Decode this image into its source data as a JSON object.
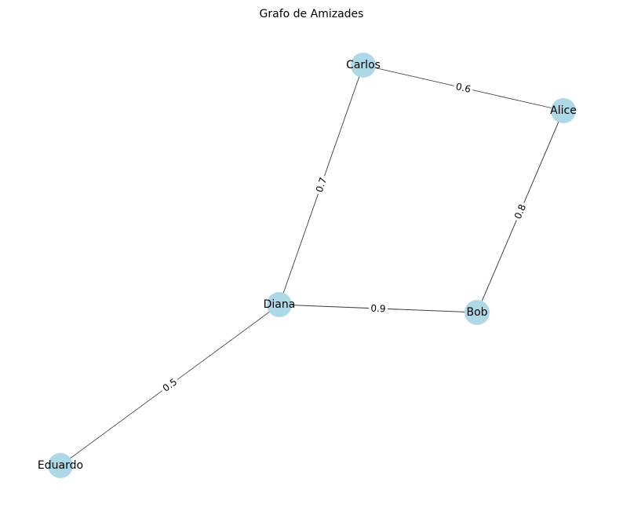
{
  "title": "Grafo de Amizades",
  "colors": {
    "node_fill": "#add8e6",
    "edge_stroke": "#000000"
  },
  "nodes": [
    {
      "id": "Alice",
      "label": "Alice"
    },
    {
      "id": "Bob",
      "label": "Bob"
    },
    {
      "id": "Carlos",
      "label": "Carlos"
    },
    {
      "id": "Diana",
      "label": "Diana"
    },
    {
      "id": "Eduardo",
      "label": "Eduardo"
    }
  ],
  "edges": [
    {
      "source": "Carlos",
      "target": "Alice",
      "weight": 0.6
    },
    {
      "source": "Alice",
      "target": "Bob",
      "weight": 0.8
    },
    {
      "source": "Carlos",
      "target": "Diana",
      "weight": 0.7
    },
    {
      "source": "Diana",
      "target": "Bob",
      "weight": 0.9
    },
    {
      "source": "Diana",
      "target": "Eduardo",
      "weight": 0.5
    }
  ]
}
